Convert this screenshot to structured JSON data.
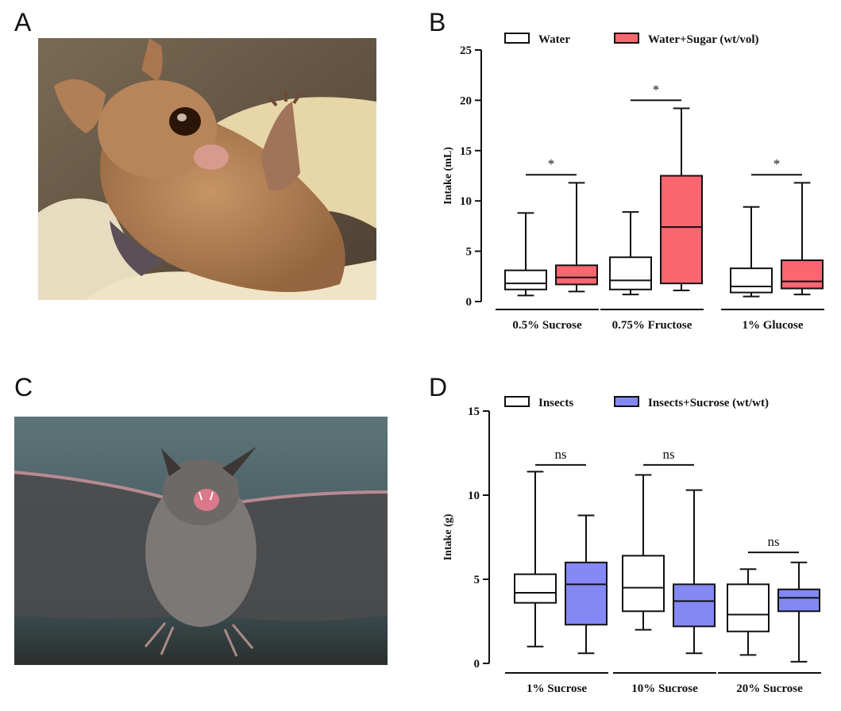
{
  "panels": [
    {
      "letter": "A",
      "type": "photo"
    },
    {
      "letter": "B",
      "type": "chart"
    },
    {
      "letter": "C",
      "type": "photo"
    },
    {
      "letter": "D",
      "type": "chart"
    }
  ],
  "colors": {
    "white_box": "#ffffff",
    "sugar_box": "#fb6671",
    "sucrose_box": "#8488f5",
    "line": "#111111"
  },
  "chart_data": [
    {
      "panel": "B",
      "type": "box",
      "ylabel": "Intake (mL)",
      "ylim": [
        0,
        25
      ],
      "yticks": [
        0,
        5,
        10,
        15,
        20,
        25
      ],
      "categories": [
        "0.5% Sucrose",
        "0.75% Fructose",
        "1% Glucose"
      ],
      "legend": {
        "placement": "top",
        "entries": [
          "Water",
          "Water+Sugar (wt/vol)"
        ]
      },
      "series": [
        {
          "name": "Water",
          "color": "#ffffff",
          "boxes": [
            {
              "min": 0.6,
              "q1": 1.2,
              "median": 1.8,
              "q3": 3.1,
              "max": 8.8
            },
            {
              "min": 0.7,
              "q1": 1.2,
              "median": 2.1,
              "q3": 4.4,
              "max": 8.9
            },
            {
              "min": 0.5,
              "q1": 0.9,
              "median": 1.5,
              "q3": 3.3,
              "max": 9.4
            }
          ]
        },
        {
          "name": "Water+Sugar (wt/vol)",
          "color": "#fb6671",
          "boxes": [
            {
              "min": 1.0,
              "q1": 1.7,
              "median": 2.4,
              "q3": 3.6,
              "max": 11.8
            },
            {
              "min": 1.1,
              "q1": 1.8,
              "median": 7.4,
              "q3": 12.5,
              "max": 19.2
            },
            {
              "min": 0.7,
              "q1": 1.3,
              "median": 2.0,
              "q3": 4.1,
              "max": 11.8
            }
          ]
        }
      ],
      "annotations": [
        {
          "category": 0,
          "label": "*",
          "y": 12.6
        },
        {
          "category": 1,
          "label": "*",
          "y": 20.0
        },
        {
          "category": 2,
          "label": "*",
          "y": 12.6
        }
      ]
    },
    {
      "panel": "D",
      "type": "box",
      "ylabel": "Intake (g)",
      "ylim": [
        0,
        15
      ],
      "yticks": [
        0,
        5,
        10,
        15
      ],
      "categories": [
        "1% Sucrose",
        "10% Sucrose",
        "20% Sucrose"
      ],
      "legend": {
        "placement": "top",
        "entries": [
          "Insects",
          "Insects+Sucrose (wt/wt)"
        ]
      },
      "series": [
        {
          "name": "Insects",
          "color": "#ffffff",
          "boxes": [
            {
              "min": 1.0,
              "q1": 3.6,
              "median": 4.2,
              "q3": 5.3,
              "max": 11.4
            },
            {
              "min": 2.0,
              "q1": 3.1,
              "median": 4.5,
              "q3": 6.4,
              "max": 11.2
            },
            {
              "min": 0.5,
              "q1": 1.9,
              "median": 2.9,
              "q3": 4.7,
              "max": 5.6
            }
          ]
        },
        {
          "name": "Insects+Sucrose (wt/wt)",
          "color": "#8488f5",
          "boxes": [
            {
              "min": 0.6,
              "q1": 2.3,
              "median": 4.7,
              "q3": 6.0,
              "max": 8.8
            },
            {
              "min": 0.6,
              "q1": 2.2,
              "median": 3.7,
              "q3": 4.7,
              "max": 10.3
            },
            {
              "min": 0.1,
              "q1": 3.1,
              "median": 3.9,
              "q3": 4.4,
              "max": 6.0
            }
          ]
        }
      ],
      "annotations": [
        {
          "category": 0,
          "label": "ns",
          "y": 11.8
        },
        {
          "category": 1,
          "label": "ns",
          "y": 11.8
        },
        {
          "category": 2,
          "label": "ns",
          "y": 6.6
        }
      ]
    }
  ]
}
